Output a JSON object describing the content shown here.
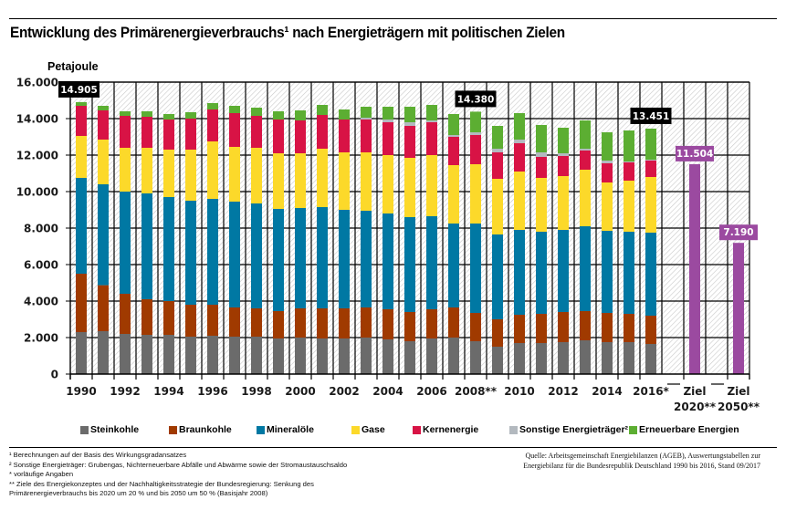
{
  "header": {
    "title": "Entwicklung des Primärenergieverbrauchs¹ nach Energieträgern mit politischen Zielen",
    "unit_label": "Petajoule"
  },
  "colors": {
    "Steinkohle": "#6b6b6b",
    "Braunkohle": "#a03a00",
    "Mineralöle": "#0078a3",
    "Gase": "#fcd92a",
    "Kernenergie": "#d81345",
    "Sonstige": "#b3b9bf",
    "Erneuerbare": "#5cae32",
    "Ziel": "#9b4aa0",
    "callout_bg": "#000000"
  },
  "chart_data": {
    "type": "bar",
    "stacked": true,
    "title": "Entwicklung des Primärenergieverbrauchs¹ nach Energieträgern mit politischen Zielen",
    "xlabel": "",
    "ylabel": "Petajoule",
    "ylim": [
      0,
      16000
    ],
    "yticks": [
      0,
      2000,
      4000,
      6000,
      8000,
      10000,
      12000,
      14000,
      16000
    ],
    "ytick_labels": [
      "0",
      "2.000",
      "4.000",
      "6.000",
      "8.000",
      "10.000",
      "12.000",
      "14.000",
      "16.000"
    ],
    "grid": true,
    "legend_position": "bottom",
    "categories": [
      "1990",
      "1991",
      "1992",
      "1993",
      "1994",
      "1995",
      "1996",
      "1997",
      "1998",
      "1999",
      "2000",
      "2001",
      "2002",
      "2003",
      "2004",
      "2005",
      "2006",
      "2007",
      "2008",
      "2009",
      "2010",
      "2011",
      "2012",
      "2013",
      "2014",
      "2015",
      "2016"
    ],
    "xtick_labels": [
      {
        "index": 0,
        "label": "1990"
      },
      {
        "index": 2,
        "label": "1992"
      },
      {
        "index": 4,
        "label": "1994"
      },
      {
        "index": 6,
        "label": "1996"
      },
      {
        "index": 8,
        "label": "1998"
      },
      {
        "index": 10,
        "label": "2000"
      },
      {
        "index": 12,
        "label": "2002"
      },
      {
        "index": 14,
        "label": "2004"
      },
      {
        "index": 16,
        "label": "2006"
      },
      {
        "index": 18,
        "label": "2008**"
      },
      {
        "index": 20,
        "label": "2010"
      },
      {
        "index": 22,
        "label": "2012"
      },
      {
        "index": 24,
        "label": "2014"
      },
      {
        "index": 26,
        "label": "2016*"
      }
    ],
    "series": [
      {
        "name": "Steinkohle",
        "values": [
          2300,
          2350,
          2200,
          2150,
          2150,
          2050,
          2100,
          2050,
          2050,
          1950,
          2000,
          1950,
          1950,
          2000,
          1900,
          1800,
          1950,
          2000,
          1800,
          1500,
          1700,
          1700,
          1750,
          1850,
          1750,
          1750,
          1650
        ]
      },
      {
        "name": "Braunkohle",
        "values": [
          3200,
          2520,
          2200,
          1950,
          1850,
          1750,
          1700,
          1600,
          1550,
          1500,
          1600,
          1650,
          1650,
          1650,
          1650,
          1600,
          1600,
          1650,
          1550,
          1500,
          1550,
          1600,
          1650,
          1600,
          1600,
          1550,
          1550
        ]
      },
      {
        "name": "Mineralöle",
        "values": [
          5250,
          5530,
          5600,
          5800,
          5700,
          5700,
          5800,
          5800,
          5750,
          5600,
          5500,
          5550,
          5400,
          5300,
          5250,
          5200,
          5100,
          4600,
          4900,
          4650,
          4650,
          4500,
          4500,
          4650,
          4500,
          4500,
          4550
        ]
      },
      {
        "name": "Gase",
        "values": [
          2300,
          2450,
          2400,
          2500,
          2600,
          2800,
          3150,
          3000,
          3050,
          3050,
          3000,
          3200,
          3150,
          3200,
          3200,
          3250,
          3350,
          3200,
          3250,
          3050,
          3200,
          2950,
          2950,
          3100,
          2650,
          2800,
          3050
        ]
      },
      {
        "name": "Kernenergie",
        "values": [
          1650,
          1600,
          1750,
          1700,
          1650,
          1700,
          1750,
          1850,
          1750,
          1850,
          1800,
          1850,
          1800,
          1800,
          1800,
          1750,
          1800,
          1550,
          1600,
          1450,
          1550,
          1150,
          1100,
          1050,
          1050,
          1000,
          900
        ]
      },
      {
        "name": "Sonstige Energieträger²",
        "values": [
          0,
          0,
          0,
          0,
          0,
          0,
          0,
          0,
          0,
          0,
          0,
          0,
          0,
          100,
          150,
          200,
          100,
          100,
          150,
          200,
          200,
          250,
          150,
          100,
          150,
          50,
          50
        ]
      },
      {
        "name": "Erneuerbare Energien",
        "values": [
          205,
          250,
          250,
          300,
          300,
          350,
          350,
          400,
          450,
          450,
          550,
          550,
          550,
          600,
          700,
          850,
          850,
          1150,
          1130,
          1250,
          1450,
          1500,
          1400,
          1550,
          1550,
          1700,
          1701
        ]
      }
    ],
    "totals": [
      14905,
      14700,
      14400,
      14400,
      14250,
      14350,
      14850,
      14700,
      14600,
      14400,
      14450,
      14750,
      14500,
      14650,
      14650,
      14650,
      14750,
      14250,
      14380,
      13600,
      14300,
      13650,
      13500,
      13900,
      13250,
      13350,
      13451
    ],
    "callouts": [
      {
        "category": "1990",
        "label": "14.905"
      },
      {
        "category": "2008",
        "label": "14.380"
      },
      {
        "category": "2016",
        "label": "13.451"
      }
    ],
    "targets": [
      {
        "label_line1": "Ziel",
        "label_line2": "2020**",
        "value": 11504,
        "value_label": "11.504"
      },
      {
        "label_line1": "Ziel",
        "label_line2": "2050**",
        "value": 7190,
        "value_label": "7.190"
      }
    ]
  },
  "legend": [
    {
      "key": "Steinkohle",
      "label": "Steinkohle"
    },
    {
      "key": "Braunkohle",
      "label": "Braunkohle"
    },
    {
      "key": "Mineralöle",
      "label": "Mineralöle"
    },
    {
      "key": "Gase",
      "label": "Gase"
    },
    {
      "key": "Kernenergie",
      "label": "Kernenergie"
    },
    {
      "key": "Sonstige",
      "label": "Sonstige Energieträger²"
    },
    {
      "key": "Erneuerbare",
      "label": "Erneuerbare Energien"
    }
  ],
  "footnotes": [
    "¹ Berechnungen auf der Basis des Wirkungsgradansatzes",
    "² Sonstige Energieträger: Grubengas, Nichterneuerbare Abfälle und Abwärme sowie der Stromaustauschsaldo",
    "* vorläufige Angaben",
    "** Ziele des Energiekonzeptes und der Nachhaltigkeitsstrategie der Bundesregierung: Senkung des",
    "Primärenergieverbrauchs bis 2020 um 20 %  und bis 2050 um 50 % (Basisjahr 2008)"
  ],
  "source": {
    "line1": "Quelle: Arbeitsgemeinschaft Energiebilanzen (AGEB), Auswertungstabellen zur",
    "line2": "Energiebilanz für die Bundesrepublik Deutschland 1990 bis 2016, Stand 09/2017"
  }
}
